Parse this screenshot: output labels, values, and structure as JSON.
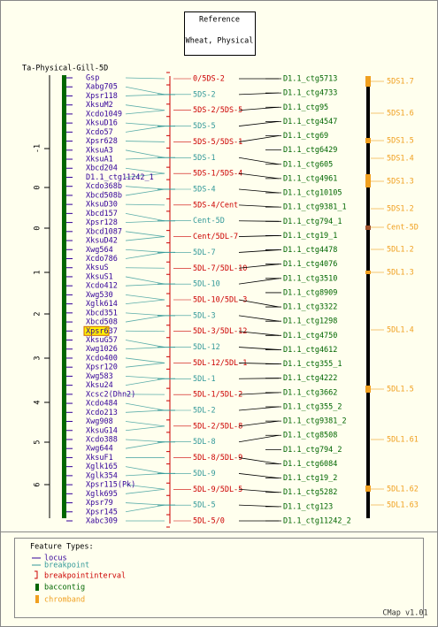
{
  "header": {
    "title": "Reference",
    "subtitle": "Wheat, Physical"
  },
  "map_title": "Ta-Physical-Gill-5D",
  "axis_labels": [
    "-1",
    "0",
    "0",
    "1",
    "2",
    "3",
    "4",
    "5",
    "6"
  ],
  "loci": [
    {
      "name": "Gsp"
    },
    {
      "name": "Xabg705"
    },
    {
      "name": "Xpsr118"
    },
    {
      "name": "XksuM2"
    },
    {
      "name": "Xcdo1049"
    },
    {
      "name": "XksuD16"
    },
    {
      "name": "Xcdo57"
    },
    {
      "name": "Xpsr628"
    },
    {
      "name": "XksuA3"
    },
    {
      "name": "XksuA1"
    },
    {
      "name": "Xbcd204"
    },
    {
      "name": "D1.1_ctg11242_1"
    },
    {
      "name": "Xcdo368b"
    },
    {
      "name": "Xbcd508b"
    },
    {
      "name": "XksuD30"
    },
    {
      "name": "Xbcd157"
    },
    {
      "name": "Xpsr128"
    },
    {
      "name": "Xbcd1087"
    },
    {
      "name": "XksuD42"
    },
    {
      "name": "Xwg564"
    },
    {
      "name": "Xcdo786"
    },
    {
      "name": "XksuS"
    },
    {
      "name": "XksuS1"
    },
    {
      "name": "Xcdo412"
    },
    {
      "name": "Xwg530"
    },
    {
      "name": "Xglk614"
    },
    {
      "name": "Xbcd351"
    },
    {
      "name": "Xbcd508"
    },
    {
      "name": "Xpsr637",
      "highlighted": true
    },
    {
      "name": "XksuG57"
    },
    {
      "name": "Xwg1026"
    },
    {
      "name": "Xcdo400"
    },
    {
      "name": "Xpsr120"
    },
    {
      "name": "Xwg583"
    },
    {
      "name": "Xksu24"
    },
    {
      "name": "Xcsc2(Dhn2)"
    },
    {
      "name": "Xcdo484"
    },
    {
      "name": "Xcdo213"
    },
    {
      "name": "Xwg908"
    },
    {
      "name": "XksuG14"
    },
    {
      "name": "Xcdo388"
    },
    {
      "name": "Xwg644"
    },
    {
      "name": "XksuF1"
    },
    {
      "name": "Xglk165"
    },
    {
      "name": "Xglk354"
    },
    {
      "name": "Xpsr115(Pk)"
    },
    {
      "name": "Xglk695"
    },
    {
      "name": "Xpsr79"
    },
    {
      "name": "Xpsr145"
    },
    {
      "name": "Xabc309"
    }
  ],
  "breakpoints": [
    {
      "label": "0/5DS-2",
      "kind": "breakpointinterval"
    },
    {
      "label": "5DS-2",
      "kind": "breakpoint"
    },
    {
      "label": "5DS-2/5DS-5",
      "kind": "breakpointinterval"
    },
    {
      "label": "5DS-5",
      "kind": "breakpoint"
    },
    {
      "label": "5DS-5/5DS-1",
      "kind": "breakpointinterval"
    },
    {
      "label": "5DS-1",
      "kind": "breakpoint"
    },
    {
      "label": "5DS-1/5DS-4",
      "kind": "breakpointinterval"
    },
    {
      "label": "5DS-4",
      "kind": "breakpoint"
    },
    {
      "label": "5DS-4/Cent",
      "kind": "breakpointinterval"
    },
    {
      "label": "Cent-5D",
      "kind": "breakpoint"
    },
    {
      "label": "Cent/5DL-7",
      "kind": "breakpointinterval"
    },
    {
      "label": "5DL-7",
      "kind": "breakpoint"
    },
    {
      "label": "5DL-7/5DL-10",
      "kind": "breakpointinterval"
    },
    {
      "label": "5DL-10",
      "kind": "breakpoint"
    },
    {
      "label": "5DL-10/5DL-3",
      "kind": "breakpointinterval"
    },
    {
      "label": "5DL-3",
      "kind": "breakpoint"
    },
    {
      "label": "5DL-3/5DL-12",
      "kind": "breakpointinterval"
    },
    {
      "label": "5DL-12",
      "kind": "breakpoint"
    },
    {
      "label": "5DL-12/5DL-1",
      "kind": "breakpointinterval"
    },
    {
      "label": "5DL-1",
      "kind": "breakpoint"
    },
    {
      "label": "5DL-1/5DL-2",
      "kind": "breakpointinterval"
    },
    {
      "label": "5DL-2",
      "kind": "breakpoint"
    },
    {
      "label": "5DL-2/5DL-8",
      "kind": "breakpointinterval"
    },
    {
      "label": "5DL-8",
      "kind": "breakpoint"
    },
    {
      "label": "5DL-8/5DL-9",
      "kind": "breakpointinterval"
    },
    {
      "label": "5DL-9",
      "kind": "breakpoint"
    },
    {
      "label": "5DL-9/5DL-5",
      "kind": "breakpointinterval"
    },
    {
      "label": "5DL-5",
      "kind": "breakpoint"
    },
    {
      "label": "5DL-5/0",
      "kind": "breakpointinterval"
    }
  ],
  "contigs": [
    "D1.1_ctg5713",
    "D1.1_ctg4733",
    "D1.1_ctg95",
    "D1.1_ctg4547",
    "D1.1_ctg69",
    "D1.1_ctg6429",
    "D1.1_ctg605",
    "D1.1_ctg4961",
    "D1.1_ctg10105",
    "D1.1_ctg9381_1",
    "D1.1_ctg794_1",
    "D1.1_ctg19_1",
    "D1.1_ctg4478",
    "D1.1_ctg4076",
    "D1.1_ctg3510",
    "D1.1_ctg8909",
    "D1.1_ctg3322",
    "D1.1_ctg1298",
    "D1.1_ctg4750",
    "D1.1_ctg4612",
    "D1.1_ctg355_1",
    "D1.1_ctg4222",
    "D1.1_ctg3662",
    "D1.1_ctg355_2",
    "D1.1_ctg9381_2",
    "D1.1_ctg8508",
    "D1.1_ctg794_2",
    "D1.1_ctg6084",
    "D1.1_ctg19_2",
    "D1.1_ctg5282",
    "D1.1_ctg123",
    "D1.1_ctg11242_2"
  ],
  "chrombands": [
    "5DS1.7",
    "5DS1.6",
    "5DS1.5",
    "5DS1.4",
    "5DS1.3",
    "5DS1.2",
    "Cent-5D",
    "5DL1.2",
    "5DL1.3",
    "5DL1.4",
    "5DL1.5",
    "5DL1.61",
    "5DL1.62",
    "5DL1.63"
  ],
  "legend": {
    "title": "Feature Types:",
    "items": [
      "locus",
      "breakpoint",
      "breakpointinterval",
      "baccontig",
      "chromband"
    ]
  },
  "footer": "CMap v1.01"
}
